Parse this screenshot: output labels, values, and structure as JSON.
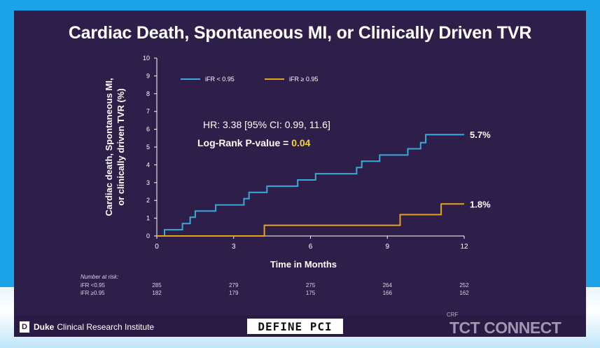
{
  "slide": {
    "title": "Cardiac Death, Spontaneous MI, or Clinically Driven TVR",
    "footer": {
      "institute_bold": "Duke",
      "institute_rest": "Clinical Research Institute",
      "logo_letter": "D",
      "trial_logo": "DEFINE PCI",
      "crf": "CRF",
      "meeting": "TCT CONNECT"
    }
  },
  "colors": {
    "background": "#2e1f4a",
    "frame": "#1aa3e6",
    "series_low": "#3aa9d6",
    "series_high": "#e6a21c",
    "highlight": "#f1d63a"
  },
  "chart_data": {
    "type": "line",
    "title": "Cardiac Death, Spontaneous MI, or Clinically Driven TVR",
    "xlabel": "Time in Months",
    "ylabel_lines": [
      "Cardiac death, Spontaneous MI,",
      "or clinically driven TVR (%)"
    ],
    "xlim": [
      0,
      12
    ],
    "ylim": [
      0,
      10
    ],
    "xticks": [
      0,
      3,
      6,
      9,
      12
    ],
    "yticks": [
      0,
      1,
      2,
      3,
      4,
      5,
      6,
      7,
      8,
      9,
      10
    ],
    "legend_position": "top-left",
    "series": [
      {
        "name": "iFR < 0.95",
        "color": "#3aa9d6",
        "end_label": "5.7%",
        "points": [
          [
            0,
            0
          ],
          [
            0.3,
            0
          ],
          [
            0.3,
            0.35
          ],
          [
            1,
            0.35
          ],
          [
            1,
            0.7
          ],
          [
            1.3,
            0.7
          ],
          [
            1.3,
            1.05
          ],
          [
            1.5,
            1.05
          ],
          [
            1.5,
            1.4
          ],
          [
            2.3,
            1.4
          ],
          [
            2.3,
            1.75
          ],
          [
            3.4,
            1.75
          ],
          [
            3.4,
            2.1
          ],
          [
            3.6,
            2.1
          ],
          [
            3.6,
            2.45
          ],
          [
            4.3,
            2.45
          ],
          [
            4.3,
            2.8
          ],
          [
            5.5,
            2.8
          ],
          [
            5.5,
            3.15
          ],
          [
            6.2,
            3.15
          ],
          [
            6.2,
            3.5
          ],
          [
            7.8,
            3.5
          ],
          [
            7.8,
            3.85
          ],
          [
            8,
            3.85
          ],
          [
            8,
            4.2
          ],
          [
            8.7,
            4.2
          ],
          [
            8.7,
            4.55
          ],
          [
            9.8,
            4.55
          ],
          [
            9.8,
            4.9
          ],
          [
            10.3,
            4.9
          ],
          [
            10.3,
            5.25
          ],
          [
            10.5,
            5.25
          ],
          [
            10.5,
            5.7
          ],
          [
            12,
            5.7
          ]
        ]
      },
      {
        "name": "iFR ≥ 0.95",
        "color": "#e6a21c",
        "end_label": "1.8%",
        "points": [
          [
            0,
            0
          ],
          [
            4.2,
            0
          ],
          [
            4.2,
            0.6
          ],
          [
            9.5,
            0.6
          ],
          [
            9.5,
            1.2
          ],
          [
            11.1,
            1.2
          ],
          [
            11.1,
            1.8
          ],
          [
            12,
            1.8
          ]
        ]
      }
    ],
    "annotations": {
      "hr": "HR: 3.38 [95% CI: 0.99, 11.6]",
      "logrank_prefix": "Log-Rank P-value = ",
      "logrank_value": "0.04"
    },
    "risk_table": {
      "header": "Number at risk:",
      "times": [
        0,
        3,
        6,
        9,
        12
      ],
      "rows": [
        {
          "label": "iFR <0.95",
          "values": [
            "285",
            "279",
            "275",
            "264",
            "252"
          ]
        },
        {
          "label": "iFR ≥0.95",
          "values": [
            "182",
            "179",
            "175",
            "166",
            "162"
          ]
        }
      ]
    }
  }
}
